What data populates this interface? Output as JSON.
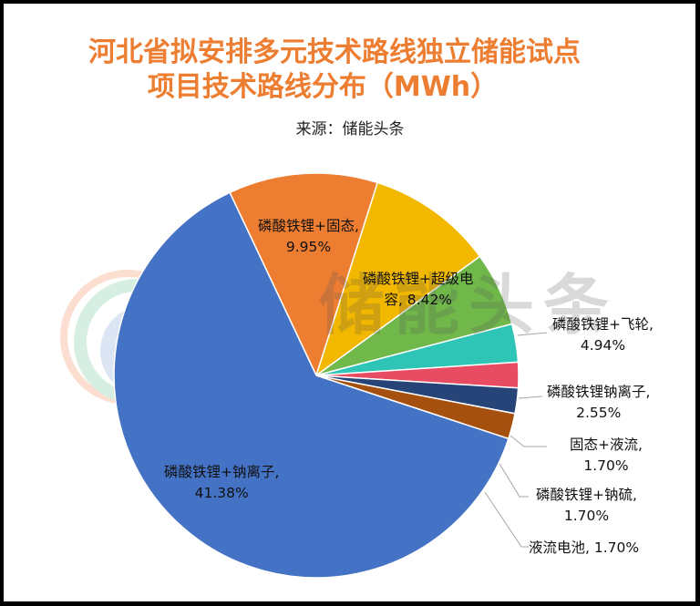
{
  "title": {
    "line1": "河北省拟安排多元技术路线独立储能试点",
    "line2": "项目技术路线分布（MWh）"
  },
  "source": "来源：储能头条",
  "watermark": "储能头条",
  "chart_data": {
    "type": "pie",
    "title": "河北省拟安排多元技术路线独立储能试点项目技术路线分布（MWh）",
    "subtitle": "来源：储能头条",
    "unit": "MWh",
    "legend": "none (data labels with leader lines)",
    "slices": [
      {
        "name": "磷酸铁锂+钠离子",
        "percent": 41.38,
        "label": "磷酸铁锂+钠离子, 41.38%",
        "color": "#4472c4"
      },
      {
        "name": "磷酸铁锂+固态",
        "percent": 9.95,
        "label": "磷酸铁锂+固态, 9.95%",
        "color": "#ed7d31"
      },
      {
        "name": "磷酸铁锂+超级电容",
        "percent": 8.42,
        "label": "磷酸铁锂+超级电容, 8.42%",
        "color": "#f2b800"
      },
      {
        "name": "磷酸铁锂+飞轮",
        "percent": 4.94,
        "label": "磷酸铁锂+飞轮, 4.94%",
        "color": "#70b84a"
      },
      {
        "name": "磷酸铁锂钠离子",
        "percent": 2.55,
        "label": "磷酸铁锂钠离子, 2.55%",
        "color": "#2ec4b6"
      },
      {
        "name": "固态+液流",
        "percent": 1.7,
        "label": "固态+液流, 1.70%",
        "color": "#e84c63"
      },
      {
        "name": "磷酸铁锂+钠硫",
        "percent": 1.7,
        "label": "磷酸铁锂+钠硫, 1.70%",
        "color": "#264478"
      },
      {
        "name": "液流电池",
        "percent": 1.7,
        "label": "液流电池, 1.70%",
        "color": "#a5500f"
      }
    ]
  },
  "labels": {
    "s0": {
      "line1": "磷酸铁锂+钠离子,",
      "line2": "41.38%"
    },
    "s1": {
      "line1": "磷酸铁锂+固态,",
      "line2": "9.95%"
    },
    "s2": {
      "line1": "磷酸铁锂+超级电",
      "line2": "容, 8.42%"
    },
    "s3": {
      "line1": "磷酸铁锂+飞轮,",
      "line2": "4.94%"
    },
    "s4": {
      "line1": "磷酸铁锂钠离子,",
      "line2": "2.55%"
    },
    "s5": {
      "line1": "固态+液流,",
      "line2": "1.70%"
    },
    "s6": {
      "line1": "磷酸铁锂+钠硫,",
      "line2": "1.70%"
    },
    "s7": {
      "line1": "液流电池, 1.70%"
    }
  }
}
